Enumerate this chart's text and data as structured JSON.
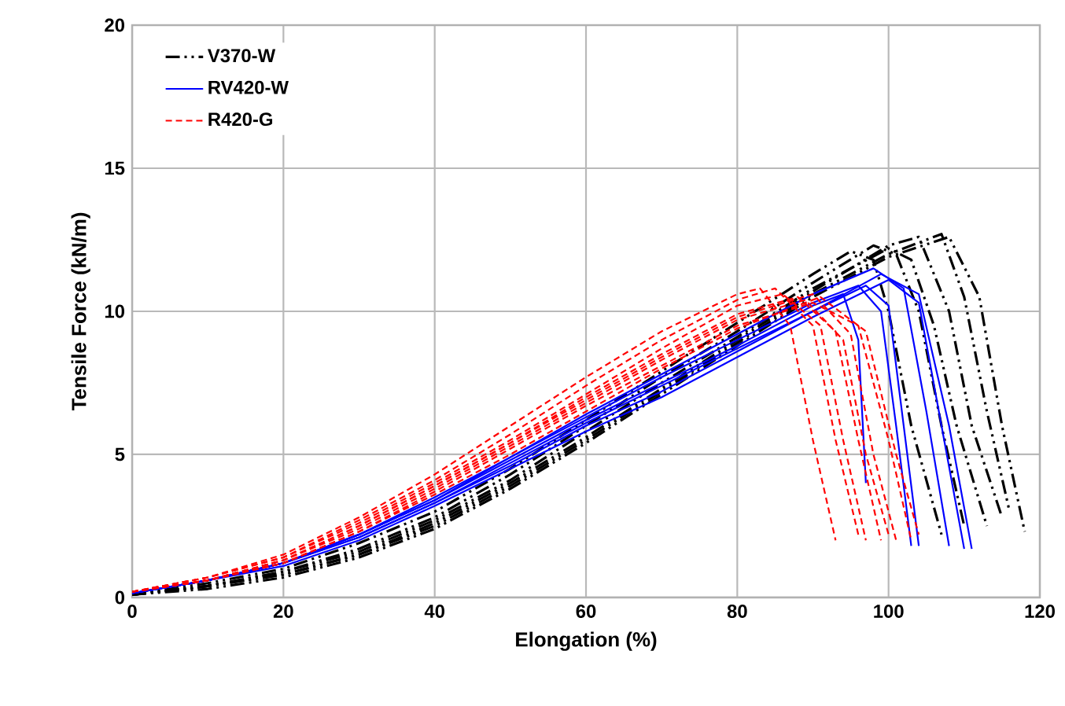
{
  "chart_data": {
    "type": "line",
    "xlabel": "Elongation (%)",
    "ylabel": "Tensile Force (kN/m)",
    "xlim": [
      0,
      120
    ],
    "ylim": [
      0,
      20
    ],
    "xticks": [
      0,
      20,
      40,
      60,
      80,
      100,
      120
    ],
    "yticks": [
      0,
      5,
      10,
      15,
      20
    ],
    "grid": true,
    "legend": "top left",
    "marker": "none",
    "series": [
      {
        "name": "V370-W",
        "color": "#000000",
        "line_style": "dashdotted",
        "x": [
          0,
          10,
          20,
          30,
          40,
          50,
          60,
          70,
          80,
          90,
          95,
          98,
          100,
          103,
          107
        ],
        "values": [
          0.1,
          0.5,
          1.0,
          1.9,
          3.0,
          4.5,
          6.2,
          7.9,
          9.6,
          11.3,
          12.1,
          11.8,
          10,
          6,
          2.2
        ]
      },
      {
        "color": "#000000",
        "line_style": "dashdotted",
        "x": [
          0,
          10,
          20,
          30,
          40,
          50,
          60,
          70,
          80,
          90,
          98,
          101,
          104,
          107,
          110
        ],
        "values": [
          0.1,
          0.4,
          0.9,
          1.7,
          2.8,
          4.3,
          6.0,
          7.7,
          9.3,
          11.0,
          12.3,
          12,
          10,
          6,
          2.5
        ]
      },
      {
        "color": "#000000",
        "line_style": "dashdotted",
        "x": [
          0,
          10,
          20,
          30,
          40,
          50,
          60,
          70,
          80,
          90,
          100,
          103,
          106,
          109,
          113
        ],
        "values": [
          0.1,
          0.4,
          0.9,
          1.6,
          2.7,
          4.1,
          5.8,
          7.5,
          9.1,
          10.8,
          12.2,
          11.8,
          9.5,
          6,
          2.5
        ]
      },
      {
        "color": "#000000",
        "line_style": "dashdotted",
        "x": [
          0,
          10,
          20,
          30,
          40,
          50,
          60,
          70,
          80,
          90,
          100,
          104,
          108,
          111,
          115
        ],
        "values": [
          0.1,
          0.4,
          0.8,
          1.5,
          2.6,
          4.0,
          5.6,
          7.3,
          9.0,
          10.7,
          12.3,
          12.6,
          10,
          6,
          2.8
        ]
      },
      {
        "color": "#000000",
        "line_style": "dashdotted",
        "x": [
          0,
          10,
          20,
          30,
          40,
          50,
          60,
          70,
          80,
          90,
          100,
          107,
          110,
          113,
          116
        ],
        "values": [
          0.1,
          0.4,
          0.8,
          1.5,
          2.5,
          3.9,
          5.5,
          7.2,
          8.9,
          10.6,
          12.0,
          12.7,
          10.5,
          6.5,
          3
        ]
      },
      {
        "color": "#000000",
        "line_style": "dashdotted",
        "x": [
          0,
          10,
          20,
          30,
          40,
          50,
          60,
          70,
          80,
          90,
          100,
          108,
          112,
          115,
          118
        ],
        "values": [
          0.1,
          0.3,
          0.7,
          1.4,
          2.4,
          3.8,
          5.4,
          7.1,
          8.8,
          10.5,
          11.9,
          12.6,
          10.5,
          6,
          2.3
        ]
      },
      {
        "name": "RV420-W",
        "color": "#0000ff",
        "line_style": "solid",
        "x": [
          0,
          10,
          20,
          30,
          40,
          50,
          60,
          70,
          80,
          90,
          94,
          96,
          97
        ],
        "values": [
          0.15,
          0.6,
          1.2,
          2.2,
          3.4,
          4.8,
          6.2,
          7.5,
          8.8,
          10.2,
          10.6,
          9,
          4
        ]
      },
      {
        "color": "#0000ff",
        "line_style": "solid",
        "x": [
          0,
          10,
          20,
          30,
          40,
          50,
          60,
          70,
          80,
          90,
          96,
          99,
          101,
          103
        ],
        "values": [
          0.15,
          0.6,
          1.2,
          2.2,
          3.5,
          4.9,
          6.3,
          7.7,
          9.0,
          10.3,
          10.9,
          10,
          6,
          1.8
        ]
      },
      {
        "color": "#0000ff",
        "line_style": "solid",
        "x": [
          0,
          10,
          20,
          30,
          40,
          50,
          60,
          70,
          80,
          90,
          97,
          100,
          102,
          104
        ],
        "values": [
          0.15,
          0.6,
          1.2,
          2.1,
          3.3,
          4.7,
          6.1,
          7.4,
          8.7,
          10.0,
          10.9,
          10.2,
          6,
          1.8
        ]
      },
      {
        "color": "#0000ff",
        "line_style": "solid",
        "x": [
          0,
          10,
          20,
          30,
          40,
          50,
          60,
          70,
          80,
          90,
          98,
          102,
          105,
          108
        ],
        "values": [
          0.15,
          0.6,
          1.2,
          2.2,
          3.4,
          4.9,
          6.4,
          7.8,
          9.2,
          10.6,
          11.5,
          10.8,
          6.5,
          1.8
        ]
      },
      {
        "color": "#0000ff",
        "line_style": "solid",
        "x": [
          0,
          10,
          20,
          30,
          40,
          50,
          60,
          70,
          80,
          90,
          100,
          104,
          107,
          110
        ],
        "values": [
          0.15,
          0.6,
          1.1,
          2.0,
          3.2,
          4.5,
          5.8,
          7.0,
          8.4,
          9.8,
          11.1,
          10.3,
          6,
          1.7
        ]
      },
      {
        "color": "#0000ff",
        "line_style": "solid",
        "x": [
          0,
          10,
          20,
          30,
          40,
          50,
          60,
          70,
          80,
          90,
          99,
          104,
          108,
          111
        ],
        "values": [
          0.15,
          0.6,
          1.2,
          2.1,
          3.3,
          4.6,
          6.0,
          7.2,
          8.6,
          10.0,
          11.3,
          10.6,
          6,
          1.7
        ]
      },
      {
        "name": "R420-G",
        "color": "#ff0000",
        "line_style": "dashed",
        "x": [
          0,
          10,
          20,
          30,
          40,
          50,
          60,
          70,
          80,
          83,
          87,
          90,
          93
        ],
        "values": [
          0.2,
          0.7,
          1.5,
          2.8,
          4.3,
          6.0,
          7.7,
          9.3,
          10.6,
          10.8,
          9.5,
          5.5,
          2.0
        ]
      },
      {
        "color": "#ff0000",
        "line_style": "dashed",
        "x": [
          0,
          10,
          20,
          30,
          40,
          50,
          60,
          70,
          80,
          85,
          90,
          93,
          96
        ],
        "values": [
          0.2,
          0.7,
          1.4,
          2.7,
          4.1,
          5.7,
          7.4,
          9.0,
          10.4,
          10.8,
          9.5,
          5.5,
          2.2
        ]
      },
      {
        "color": "#ff0000",
        "line_style": "dashed",
        "x": [
          0,
          10,
          20,
          30,
          40,
          50,
          60,
          70,
          80,
          86,
          91,
          94,
          97
        ],
        "values": [
          0.2,
          0.7,
          1.4,
          2.6,
          4.0,
          5.5,
          7.1,
          8.7,
          10.2,
          10.6,
          9.5,
          5.5,
          2.0
        ]
      },
      {
        "color": "#ff0000",
        "line_style": "dashed",
        "x": [
          0,
          10,
          20,
          30,
          40,
          50,
          60,
          70,
          80,
          88,
          93,
          96,
          99
        ],
        "values": [
          0.2,
          0.6,
          1.3,
          2.5,
          3.9,
          5.4,
          7.0,
          8.5,
          9.9,
          10.5,
          9.3,
          5.5,
          2.0
        ]
      },
      {
        "color": "#ff0000",
        "line_style": "dashed",
        "x": [
          0,
          10,
          20,
          30,
          40,
          50,
          60,
          70,
          80,
          89,
          94,
          97,
          100
        ],
        "values": [
          0.2,
          0.6,
          1.3,
          2.4,
          3.8,
          5.3,
          6.8,
          8.3,
          9.7,
          10.4,
          9.0,
          5.0,
          2.2
        ]
      },
      {
        "color": "#ff0000",
        "line_style": "dashed",
        "x": [
          0,
          10,
          20,
          30,
          40,
          50,
          60,
          70,
          80,
          90,
          95,
          98,
          101
        ],
        "values": [
          0.2,
          0.6,
          1.3,
          2.5,
          3.9,
          5.4,
          6.9,
          8.4,
          9.8,
          10.6,
          9.2,
          5.0,
          2.0
        ]
      },
      {
        "color": "#ff0000",
        "line_style": "dashed",
        "x": [
          0,
          10,
          20,
          30,
          40,
          50,
          60,
          70,
          80,
          90,
          96,
          100,
          103
        ],
        "values": [
          0.2,
          0.6,
          1.2,
          2.3,
          3.7,
          5.2,
          6.7,
          8.1,
          9.5,
          10.3,
          9.5,
          5.5,
          2.0
        ]
      },
      {
        "color": "#ff0000",
        "line_style": "dashed",
        "x": [
          0,
          10,
          20,
          30,
          40,
          50,
          60,
          70,
          80,
          91,
          97,
          101,
          104
        ],
        "values": [
          0.2,
          0.6,
          1.2,
          2.3,
          3.6,
          5.0,
          6.5,
          8.0,
          9.4,
          10.5,
          9.3,
          5.0,
          2.2
        ]
      }
    ]
  }
}
